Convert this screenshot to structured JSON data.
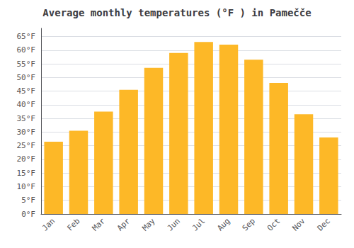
{
  "chart_data": {
    "type": "bar",
    "title": "Average monthly temperatures (°F ) in Pamečče",
    "categories": [
      "Jan",
      "Feb",
      "Mar",
      "Apr",
      "May",
      "Jun",
      "Jul",
      "Aug",
      "Sep",
      "Oct",
      "Nov",
      "Dec"
    ],
    "values": [
      26.5,
      30.5,
      37.5,
      45.5,
      53.5,
      59.0,
      63.0,
      62.0,
      56.5,
      48.0,
      36.5,
      28.0
    ],
    "color": "#FDB827",
    "ylim": [
      0,
      68
    ],
    "yticks": [
      {
        "value": 0,
        "label": "0°F"
      },
      {
        "value": 5,
        "label": "5°F"
      },
      {
        "value": 10,
        "label": "10°F"
      },
      {
        "value": 15,
        "label": "15°F"
      },
      {
        "value": 20,
        "label": "20°F"
      },
      {
        "value": 25,
        "label": "25°F"
      },
      {
        "value": 30,
        "label": "30°F"
      },
      {
        "value": 35,
        "label": "35°F"
      },
      {
        "value": 40,
        "label": "40°F"
      },
      {
        "value": 45,
        "label": "45°F"
      },
      {
        "value": 50,
        "label": "50°F"
      },
      {
        "value": 55,
        "label": "55°F"
      },
      {
        "value": 60,
        "label": "60°F"
      },
      {
        "value": 65,
        "label": "65°F"
      }
    ],
    "grid": true
  }
}
